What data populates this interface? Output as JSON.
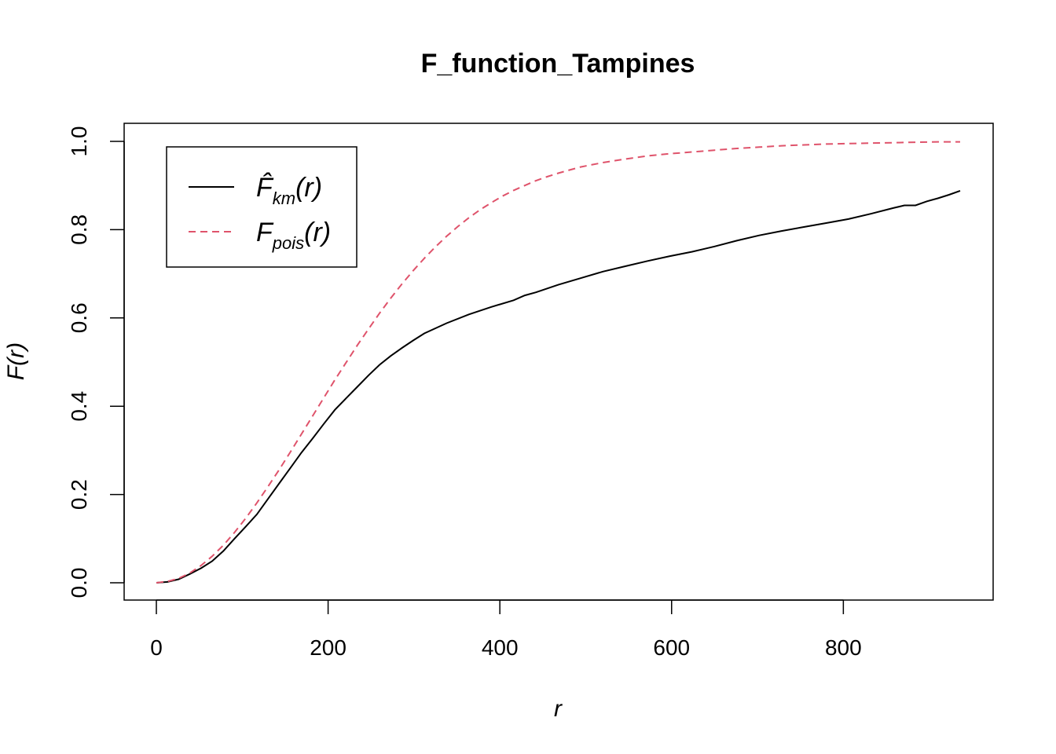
{
  "chart_data": {
    "type": "line",
    "title": "F_function_Tampines",
    "xlabel": "r",
    "ylabel": "F(r)",
    "xlim": [
      0,
      936
    ],
    "ylim": [
      0,
      1
    ],
    "x_ticks": [
      0,
      200,
      400,
      600,
      800
    ],
    "y_ticks": [
      0.0,
      0.2,
      0.4,
      0.6,
      0.8,
      1.0
    ],
    "x_tick_labels": [
      "0",
      "200",
      "400",
      "600",
      "800"
    ],
    "y_tick_labels": [
      "0.0",
      "0.2",
      "0.4",
      "0.6",
      "0.8",
      "1.0"
    ],
    "grid": false,
    "legend_position": "top-left",
    "series": [
      {
        "name": "F̂km(r)",
        "name_main": "F̂",
        "name_sub": "km",
        "name_tail": "(r)",
        "color": "#000000",
        "dash": "solid",
        "x": [
          0,
          13,
          26,
          39,
          52,
          65,
          78,
          91,
          104,
          117,
          130,
          143,
          156,
          169,
          182,
          195,
          208,
          221,
          234,
          247,
          260,
          273,
          286,
          299,
          312,
          338,
          364,
          390,
          416,
          429,
          442,
          468,
          494,
          520,
          546,
          572,
          598,
          624,
          650,
          676,
          702,
          728,
          754,
          780,
          806,
          832,
          858,
          871,
          884,
          897,
          910,
          923,
          936
        ],
        "y": [
          0.0,
          0.002,
          0.008,
          0.02,
          0.033,
          0.049,
          0.072,
          0.1,
          0.127,
          0.155,
          0.19,
          0.225,
          0.26,
          0.295,
          0.327,
          0.36,
          0.392,
          0.418,
          0.444,
          0.47,
          0.494,
          0.514,
          0.532,
          0.549,
          0.565,
          0.588,
          0.608,
          0.625,
          0.64,
          0.651,
          0.658,
          0.675,
          0.69,
          0.705,
          0.717,
          0.729,
          0.74,
          0.75,
          0.762,
          0.775,
          0.787,
          0.797,
          0.806,
          0.815,
          0.824,
          0.836,
          0.849,
          0.855,
          0.855,
          0.864,
          0.871,
          0.879,
          0.888
        ]
      },
      {
        "name": "Fpois(r)",
        "name_main": "F",
        "name_sub": "pois",
        "name_tail": "(r)",
        "color": "#df536b",
        "dash": "dashed",
        "x": [
          0,
          13,
          26,
          39,
          52,
          65,
          78,
          91,
          104,
          117,
          130,
          143,
          156,
          169,
          182,
          195,
          208,
          221,
          234,
          247,
          260,
          273,
          286,
          299,
          312,
          325,
          338,
          351,
          364,
          377,
          390,
          403,
          416,
          429,
          442,
          455,
          468,
          481,
          494,
          520,
          546,
          572,
          598,
          624,
          650,
          676,
          702,
          728,
          754,
          780,
          806,
          832,
          858,
          884,
          910,
          936
        ],
        "y": [
          0.0,
          0.003,
          0.01,
          0.022,
          0.039,
          0.06,
          0.085,
          0.114,
          0.146,
          0.181,
          0.218,
          0.256,
          0.296,
          0.337,
          0.378,
          0.419,
          0.46,
          0.499,
          0.538,
          0.575,
          0.611,
          0.645,
          0.677,
          0.707,
          0.735,
          0.761,
          0.785,
          0.807,
          0.827,
          0.845,
          0.861,
          0.876,
          0.889,
          0.9,
          0.911,
          0.92,
          0.928,
          0.935,
          0.942,
          0.952,
          0.96,
          0.967,
          0.972,
          0.976,
          0.98,
          0.984,
          0.987,
          0.99,
          0.992,
          0.994,
          0.995,
          0.996,
          0.997,
          0.998,
          0.999,
          0.999
        ]
      }
    ]
  }
}
